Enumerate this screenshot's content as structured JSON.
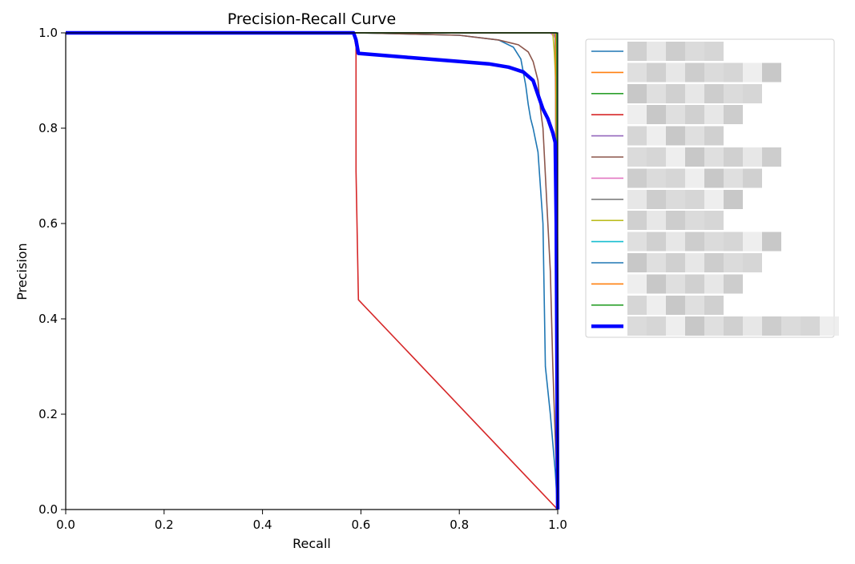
{
  "chart_data": {
    "type": "line",
    "title": "Precision-Recall Curve",
    "xlabel": "Recall",
    "ylabel": "Precision",
    "xlim": [
      0,
      1
    ],
    "ylim": [
      0,
      1
    ],
    "grid": false,
    "legend_position": "outside-right",
    "x_ticks": [
      "0.0",
      "0.2",
      "0.4",
      "0.6",
      "0.8",
      "1.0"
    ],
    "y_ticks": [
      "0.0",
      "0.2",
      "0.4",
      "0.6",
      "0.8",
      "1.0"
    ],
    "series": [
      {
        "color": "#1f77b4",
        "width": "thin",
        "x": [
          0,
          0.59,
          0.8,
          0.88,
          0.91,
          0.925,
          0.935,
          0.94,
          0.945,
          0.95,
          0.96,
          0.97,
          0.975,
          0.985,
          0.995,
          1.0
        ],
        "y": [
          1.0,
          1.0,
          0.995,
          0.985,
          0.97,
          0.945,
          0.89,
          0.85,
          0.82,
          0.8,
          0.75,
          0.6,
          0.3,
          0.2,
          0.08,
          0.0
        ]
      },
      {
        "color": "#ff7f0e",
        "width": "thin",
        "x": [
          0,
          0.99,
          0.995,
          0.997,
          1.0
        ],
        "y": [
          1.0,
          1.0,
          0.99,
          0.97,
          0.0
        ]
      },
      {
        "color": "#2ca02c",
        "width": "thin",
        "x": [
          0,
          0.995,
          0.998,
          1.0
        ],
        "y": [
          1.0,
          1.0,
          0.998,
          0.0
        ]
      },
      {
        "color": "#d62728",
        "width": "thin",
        "x": [
          0,
          0.585,
          0.59,
          0.59,
          0.595,
          1.0
        ],
        "y": [
          1.0,
          1.0,
          0.97,
          0.71,
          0.44,
          0.0
        ]
      },
      {
        "color": "#9467bd",
        "width": "thin",
        "x": [
          0,
          0.99,
          0.996,
          1.0
        ],
        "y": [
          1.0,
          1.0,
          0.99,
          0.0
        ]
      },
      {
        "color": "#8c564b",
        "width": "thin",
        "x": [
          0,
          0.59,
          0.8,
          0.88,
          0.92,
          0.94,
          0.95,
          0.96,
          0.965,
          0.97,
          0.98,
          0.985,
          0.99,
          1.0
        ],
        "y": [
          1.0,
          1.0,
          0.995,
          0.985,
          0.975,
          0.96,
          0.94,
          0.9,
          0.84,
          0.8,
          0.6,
          0.5,
          0.3,
          0.0
        ]
      },
      {
        "color": "#e377c2",
        "width": "thin",
        "x": [
          0,
          0.985,
          0.995,
          1.0
        ],
        "y": [
          1.0,
          1.0,
          0.99,
          0.0
        ]
      },
      {
        "color": "#7f7f7f",
        "width": "thin",
        "x": [
          0,
          0.995,
          1.0
        ],
        "y": [
          1.0,
          1.0,
          0.0
        ]
      },
      {
        "color": "#bcbd22",
        "width": "thin",
        "x": [
          0,
          0.99,
          0.993,
          0.996,
          1.0
        ],
        "y": [
          1.0,
          1.0,
          0.96,
          0.9,
          0.0
        ]
      },
      {
        "color": "#17becf",
        "width": "thin",
        "x": [
          0,
          0.997,
          1.0
        ],
        "y": [
          1.0,
          1.0,
          0.0
        ]
      },
      {
        "color": "#1f77b4",
        "width": "thin",
        "x": [
          0,
          0.996,
          1.0
        ],
        "y": [
          1.0,
          1.0,
          0.0
        ]
      },
      {
        "color": "#ff7f0e",
        "width": "thin",
        "x": [
          0,
          0.996,
          1.0
        ],
        "y": [
          1.0,
          1.0,
          0.0
        ]
      },
      {
        "color": "#2ca02c",
        "width": "thin",
        "x": [
          0,
          0.998,
          1.0
        ],
        "y": [
          1.0,
          1.0,
          0.0
        ]
      },
      {
        "color": "#0000ff",
        "width": "thick",
        "x": [
          0,
          0.585,
          0.59,
          0.595,
          0.7,
          0.8,
          0.86,
          0.9,
          0.93,
          0.95,
          0.96,
          0.97,
          0.98,
          0.99,
          0.995,
          0.997,
          1.0
        ],
        "y": [
          1.0,
          1.0,
          0.985,
          0.957,
          0.948,
          0.94,
          0.935,
          0.928,
          0.918,
          0.9,
          0.87,
          0.84,
          0.82,
          0.79,
          0.77,
          0.6,
          0.0
        ]
      }
    ]
  },
  "legend": {
    "entries": [
      {
        "color": "#1f77b4",
        "width": "thin"
      },
      {
        "color": "#ff7f0e",
        "width": "thin"
      },
      {
        "color": "#2ca02c",
        "width": "thin"
      },
      {
        "color": "#d62728",
        "width": "thin"
      },
      {
        "color": "#9467bd",
        "width": "thin"
      },
      {
        "color": "#8c564b",
        "width": "thin"
      },
      {
        "color": "#e377c2",
        "width": "thin"
      },
      {
        "color": "#7f7f7f",
        "width": "thin"
      },
      {
        "color": "#bcbd22",
        "width": "thin"
      },
      {
        "color": "#17becf",
        "width": "thin"
      },
      {
        "color": "#1f77b4",
        "width": "thin"
      },
      {
        "color": "#ff7f0e",
        "width": "thin"
      },
      {
        "color": "#2ca02c",
        "width": "thin"
      },
      {
        "color": "#0000ff",
        "width": "thick"
      }
    ],
    "labels_obscured": true
  }
}
